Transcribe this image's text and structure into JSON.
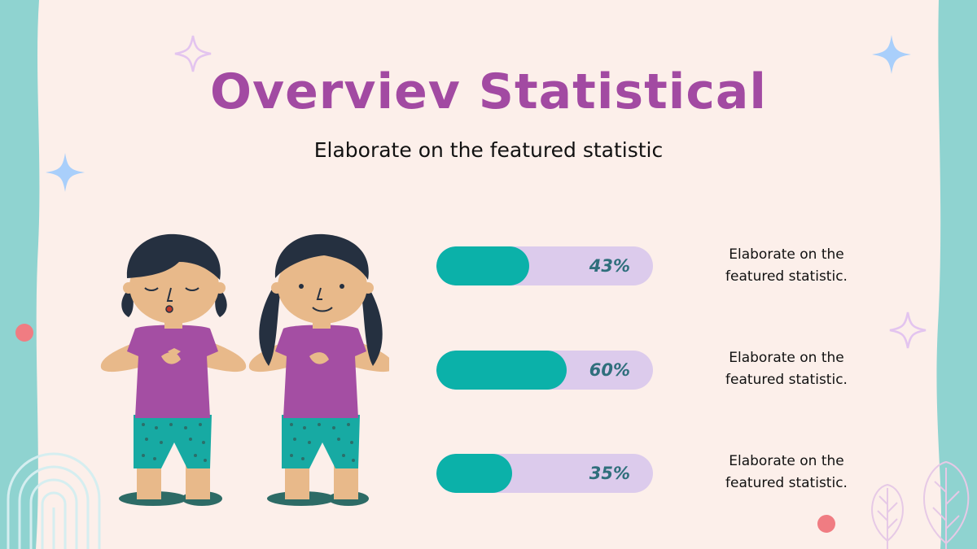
{
  "slide": {
    "title": "Overviev Statistical",
    "subtitle": "Elaborate on the featured statistic"
  },
  "stats": [
    {
      "percent": 43,
      "label": "43%",
      "description_line1": "Elaborate on the",
      "description_line2": "featured statistic."
    },
    {
      "percent": 60,
      "label": "60%",
      "description_line1": "Elaborate on the",
      "description_line2": "featured statistic."
    },
    {
      "percent": 35,
      "label": "35%",
      "description_line1": "Elaborate on the",
      "description_line2": "featured statistic."
    }
  ],
  "colors": {
    "background": "#fcefea",
    "border": "#8fd3d0",
    "title": "#a24aa2",
    "bar_fill": "#0bb1a9",
    "bar_track": "#dccbec",
    "bar_label": "#2f6f7c"
  },
  "icons": [
    "sparkle-icon",
    "spiral-doodle-icon",
    "leaf-doodle-icon",
    "girl-illustration"
  ]
}
